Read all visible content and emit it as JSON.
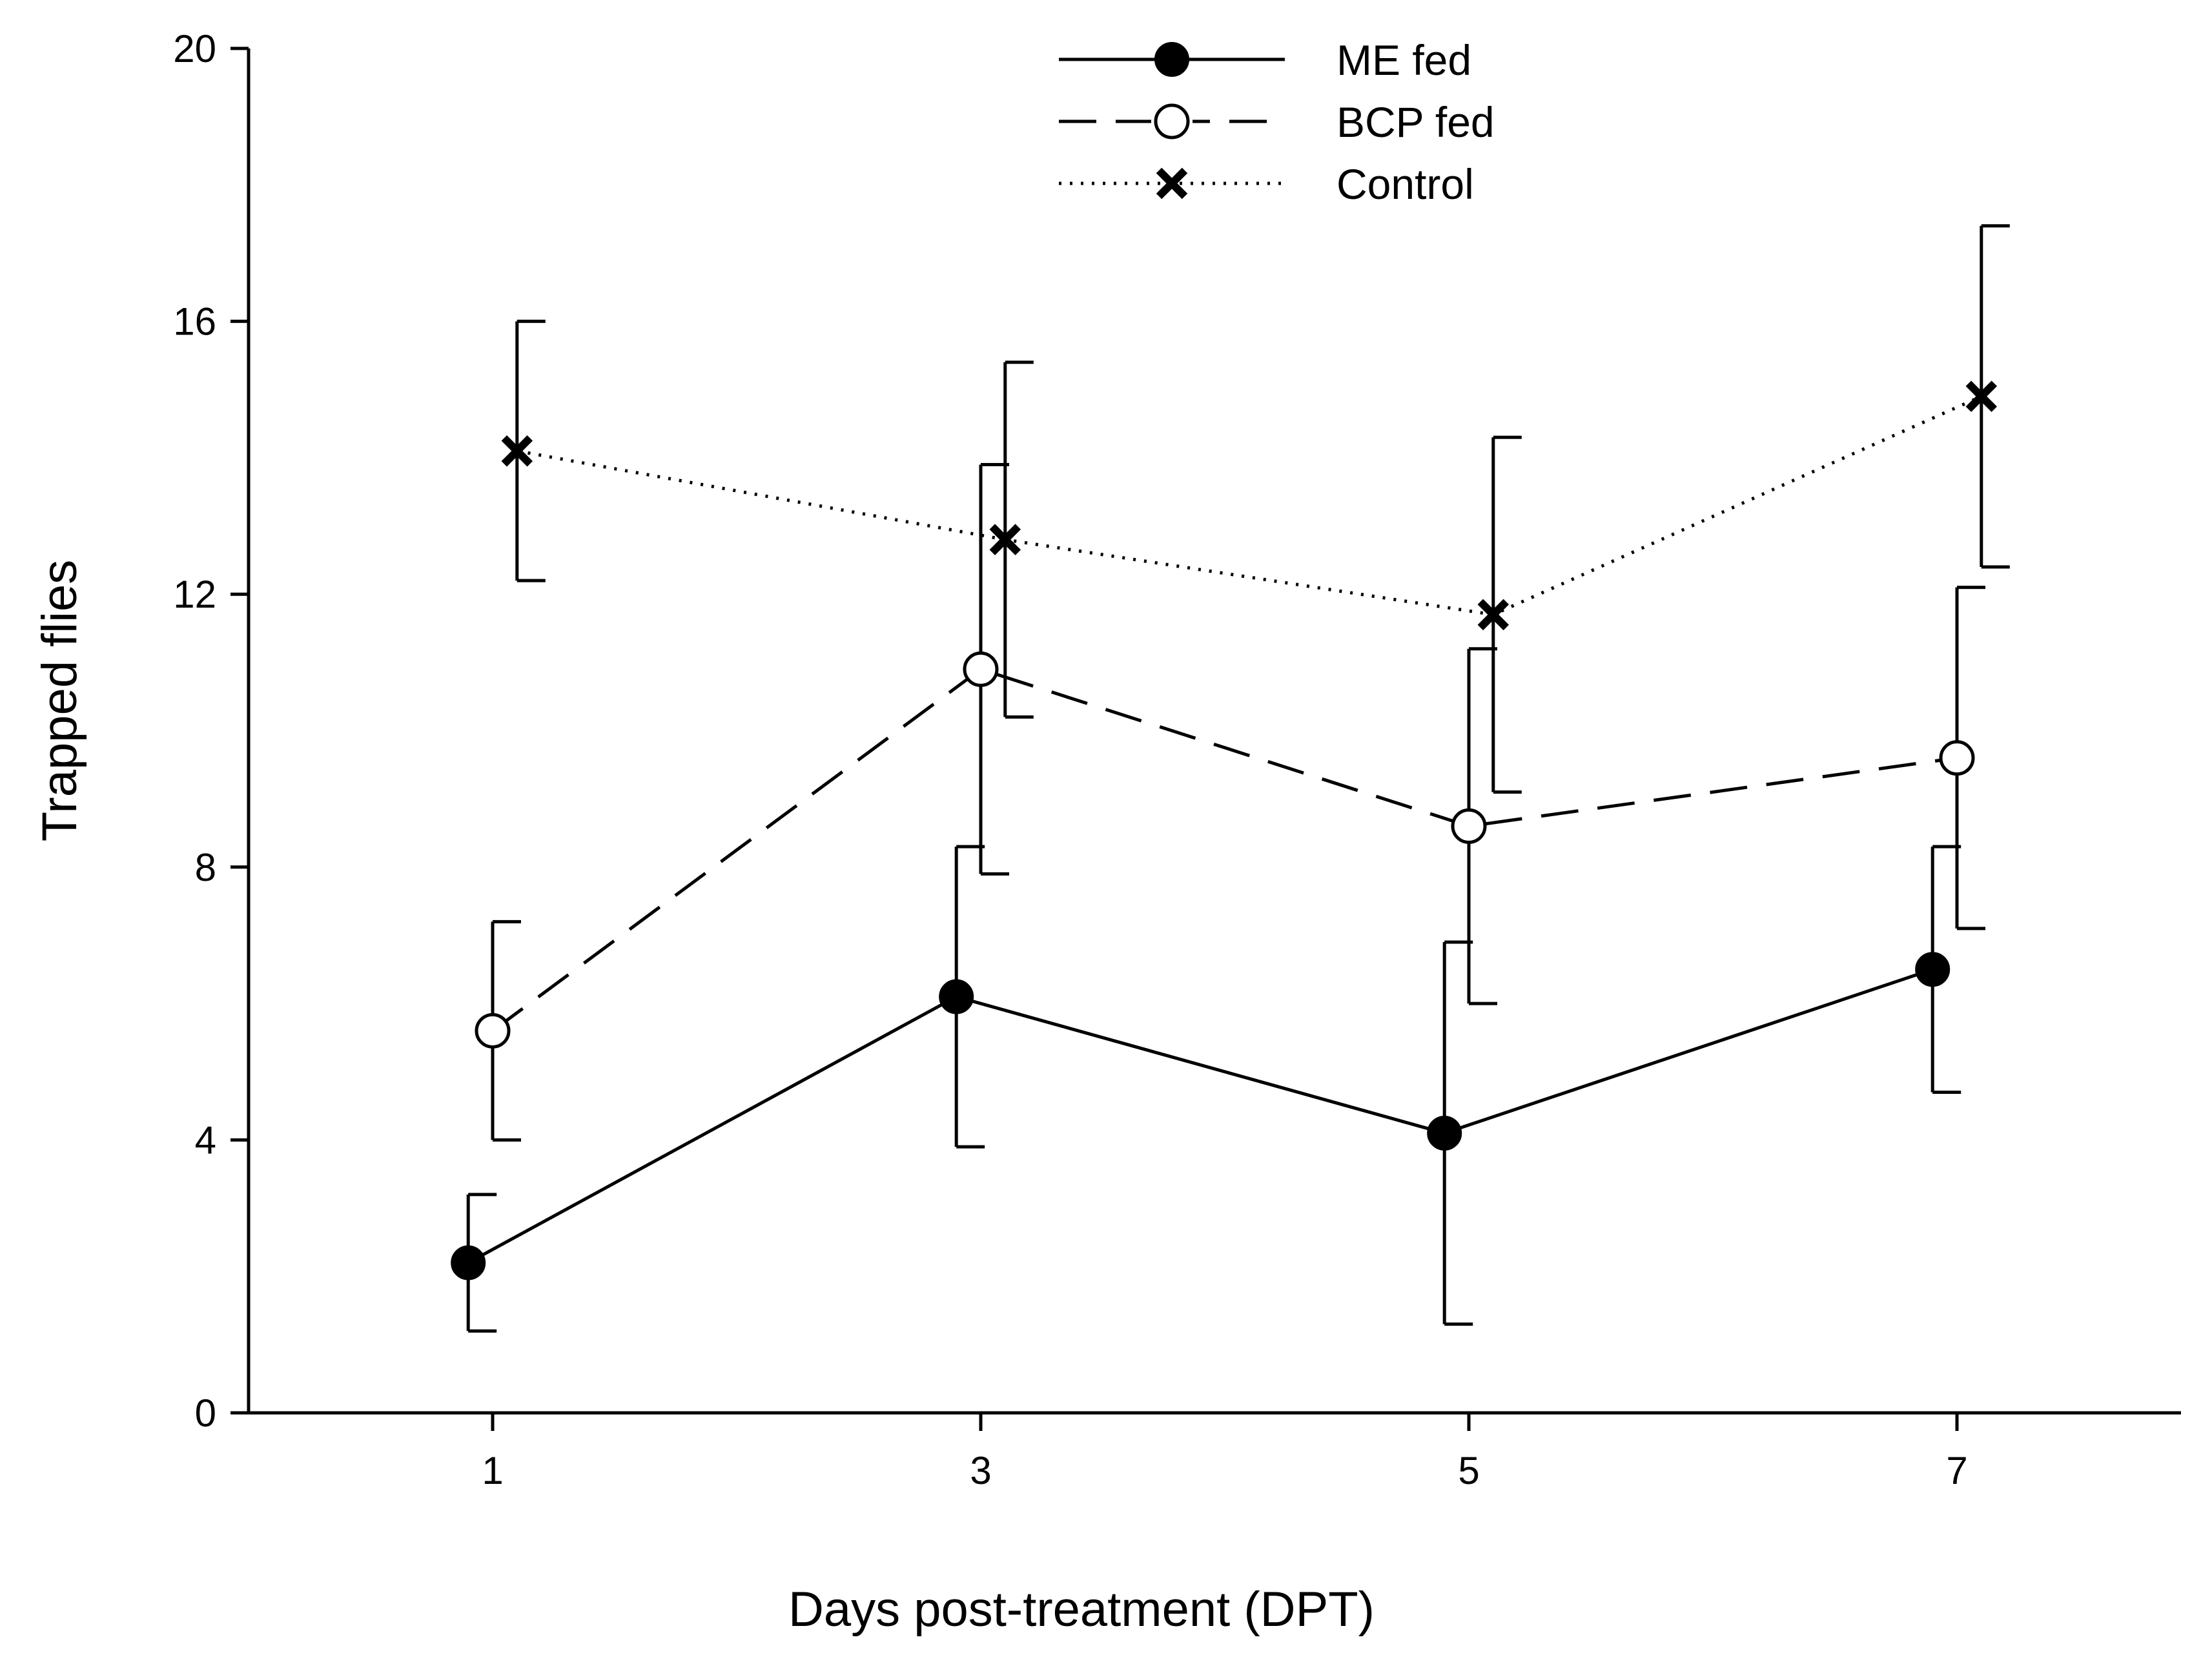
{
  "chart_data": {
    "type": "line",
    "title": "",
    "xlabel": "Days post-treatment (DPT)",
    "ylabel": "Trapped flies",
    "x": [
      1,
      3,
      5,
      7
    ],
    "xticks": [
      "1",
      "3",
      "5",
      "7"
    ],
    "xlim": [
      0,
      8.1
    ],
    "ylim": [
      0,
      20
    ],
    "yticks": [
      "0",
      "4",
      "8",
      "12",
      "16",
      "20"
    ],
    "grid": false,
    "legend_position": "top-center",
    "series": [
      {
        "name": "ME fed",
        "style": "solid",
        "marker": "filled-circle",
        "x_offset": -0.1,
        "values": [
          2.2,
          6.1,
          4.1,
          6.5
        ],
        "error_low": [
          1.2,
          3.9,
          1.3,
          4.7
        ],
        "error_high": [
          3.2,
          8.3,
          6.9,
          8.3
        ]
      },
      {
        "name": "BCP fed",
        "style": "dashed",
        "marker": "open-circle",
        "x_offset": 0,
        "values": [
          5.6,
          10.9,
          8.6,
          9.6
        ],
        "error_low": [
          4.0,
          7.9,
          6.0,
          7.1
        ],
        "error_high": [
          7.2,
          13.9,
          11.2,
          12.1
        ]
      },
      {
        "name": "Control",
        "style": "dotted",
        "marker": "x",
        "x_offset": 0.1,
        "values": [
          14.1,
          12.8,
          11.7,
          14.9
        ],
        "error_low": [
          12.2,
          10.2,
          9.1,
          12.4
        ],
        "error_high": [
          16.0,
          15.4,
          14.3,
          17.4
        ]
      }
    ]
  }
}
